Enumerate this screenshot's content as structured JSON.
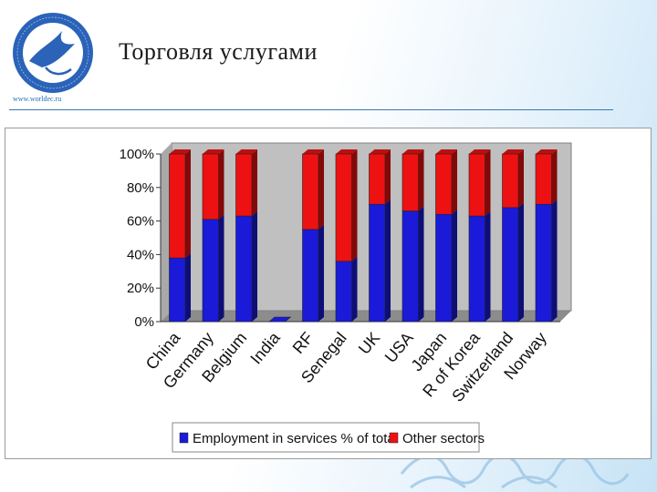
{
  "header": {
    "title": "Торговля услугами",
    "site_url": "www.worldec.ru"
  },
  "colors": {
    "services": "#1a1ad8",
    "other": "#ee1111",
    "plot_background": "#c0c0c0",
    "rule": "#3a78b5"
  },
  "chart_data": {
    "type": "bar",
    "stacked": true,
    "normalized": "percent",
    "categories": [
      "China",
      "Germany",
      "Belgium",
      "India",
      "RF",
      "Senegal",
      "UK",
      "USA",
      "Japan",
      "R of Korea",
      "Switzerland",
      "Norway"
    ],
    "series": [
      {
        "name": "Employment in services % of total",
        "values": [
          38,
          61,
          63,
          0,
          55,
          36,
          70,
          66,
          64,
          63,
          68,
          70
        ]
      },
      {
        "name": "Other sectors",
        "values": [
          62,
          39,
          37,
          0,
          45,
          64,
          30,
          34,
          36,
          37,
          32,
          30
        ]
      }
    ],
    "yticks": [
      "0%",
      "20%",
      "40%",
      "60%",
      "80%",
      "100%"
    ],
    "ylim": [
      0,
      100
    ],
    "grid": false,
    "legend_position": "bottom",
    "style": "3d"
  }
}
